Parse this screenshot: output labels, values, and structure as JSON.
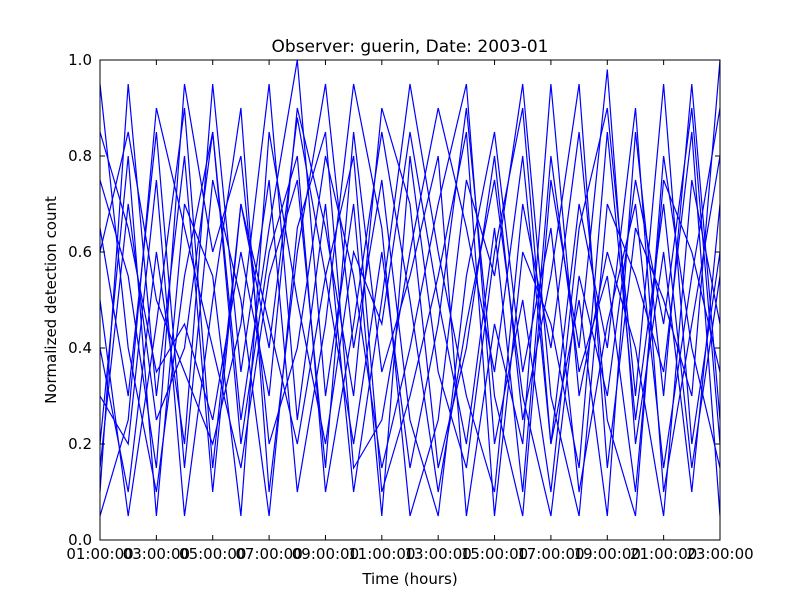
{
  "chart_data": {
    "type": "line",
    "title": "Observer: guerin, Date: 2003-01",
    "xlabel": "Time (hours)",
    "ylabel": "Normalized detection count",
    "x_tick_labels": [
      "01:00:00",
      "03:00:00",
      "05:00:00",
      "07:00:00",
      "09:00:00",
      "11:00:00",
      "13:00:00",
      "15:00:00",
      "17:00:00",
      "19:00:00",
      "21:00:00",
      "23:00:00"
    ],
    "y_tick_labels": [
      "0.0",
      "0.2",
      "0.4",
      "0.6",
      "0.8",
      "1.0"
    ],
    "ylim": [
      0,
      1
    ],
    "grid": false,
    "line_color": "#0000ff",
    "x": [
      "01:00:00",
      "02:00:00",
      "03:00:00",
      "04:00:00",
      "05:00:00",
      "06:00:00",
      "07:00:00",
      "08:00:00",
      "09:00:00",
      "10:00:00",
      "11:00:00",
      "12:00:00",
      "13:00:00",
      "14:00:00",
      "15:00:00",
      "16:00:00",
      "17:00:00",
      "18:00:00",
      "19:00:00",
      "20:00:00",
      "21:00:00",
      "22:00:00",
      "23:00:00"
    ],
    "series": [
      {
        "values": [
          0.1,
          0.95,
          0.3,
          0.8,
          0.1,
          0.7,
          0.4,
          0.88,
          0.55,
          0.2,
          0.6,
          0.15,
          0.45,
          0.9,
          0.3,
          0.05,
          0.75,
          0.4,
          0.98,
          0.2,
          0.6,
          0.1,
          0.7
        ]
      },
      {
        "values": [
          0.95,
          0.4,
          0.1,
          0.55,
          0.85,
          0.25,
          0.65,
          1.0,
          0.3,
          0.7,
          0.05,
          0.8,
          0.35,
          0.15,
          0.6,
          0.9,
          0.2,
          0.5,
          0.05,
          0.85,
          0.3,
          0.95,
          0.25
        ]
      },
      {
        "values": [
          0.3,
          0.2,
          0.75,
          0.05,
          0.5,
          0.9,
          0.1,
          0.6,
          0.95,
          0.4,
          0.75,
          0.25,
          0.05,
          0.55,
          0.85,
          0.35,
          0.65,
          0.1,
          0.45,
          0.7,
          0.15,
          0.55,
          0.9
        ]
      },
      {
        "values": [
          0.6,
          0.85,
          0.5,
          0.35,
          0.2,
          0.45,
          0.95,
          0.25,
          0.7,
          0.1,
          0.5,
          0.95,
          0.6,
          0.3,
          0.1,
          0.7,
          0.4,
          0.85,
          0.25,
          0.05,
          0.8,
          0.4,
          0.15
        ]
      },
      {
        "values": [
          0.05,
          0.25,
          0.9,
          0.65,
          0.4,
          0.15,
          0.55,
          0.75,
          0.15,
          0.85,
          0.35,
          0.55,
          0.8,
          0.05,
          0.45,
          0.2,
          0.95,
          0.3,
          0.6,
          0.4,
          0.05,
          0.75,
          0.45
        ]
      },
      {
        "values": [
          0.75,
          0.55,
          0.15,
          0.95,
          0.6,
          0.8,
          0.2,
          0.4,
          0.8,
          0.55,
          0.15,
          0.4,
          0.7,
          0.95,
          0.2,
          0.5,
          0.1,
          0.65,
          0.9,
          0.3,
          0.95,
          0.2,
          0.6
        ]
      },
      {
        "values": [
          0.4,
          0.1,
          0.6,
          0.2,
          0.95,
          0.35,
          0.75,
          0.1,
          0.45,
          0.95,
          0.65,
          0.05,
          0.25,
          0.75,
          0.55,
          0.95,
          0.3,
          0.05,
          0.7,
          0.55,
          0.35,
          0.85,
          0.05
        ]
      },
      {
        "values": [
          0.85,
          0.65,
          0.35,
          0.45,
          0.25,
          0.6,
          0.3,
          0.9,
          0.65,
          0.3,
          0.9,
          0.7,
          0.15,
          0.4,
          0.8,
          0.25,
          0.55,
          0.95,
          0.15,
          0.65,
          0.5,
          0.3,
          1.0
        ]
      },
      {
        "values": [
          0.2,
          0.8,
          0.05,
          0.7,
          0.55,
          0.05,
          0.85,
          0.5,
          0.2,
          0.6,
          0.45,
          0.85,
          0.5,
          0.2,
          0.65,
          0.1,
          0.8,
          0.35,
          0.55,
          0.1,
          0.75,
          0.6,
          0.35
        ]
      },
      {
        "values": [
          0.65,
          0.3,
          0.85,
          0.15,
          0.75,
          0.5,
          0.05,
          0.65,
          0.85,
          0.15,
          0.25,
          0.6,
          0.9,
          0.65,
          0.35,
          0.8,
          0.2,
          0.7,
          0.4,
          0.9,
          0.1,
          0.45,
          0.8
        ]
      },
      {
        "values": [
          0.5,
          0.05,
          0.45,
          0.9,
          0.15,
          0.7,
          0.45,
          0.2,
          0.55,
          0.8,
          0.1,
          0.3,
          0.55,
          0.85,
          0.05,
          0.6,
          0.45,
          0.15,
          0.85,
          0.25,
          0.7,
          0.15,
          0.55
        ]
      },
      {
        "values": [
          0.15,
          0.7,
          0.25,
          0.4,
          0.85,
          0.2,
          0.6,
          0.8,
          0.1,
          0.45,
          0.85,
          0.5,
          0.1,
          0.45,
          0.75,
          0.3,
          0.05,
          0.55,
          0.3,
          0.75,
          0.45,
          0.9,
          0.2
        ]
      }
    ]
  }
}
